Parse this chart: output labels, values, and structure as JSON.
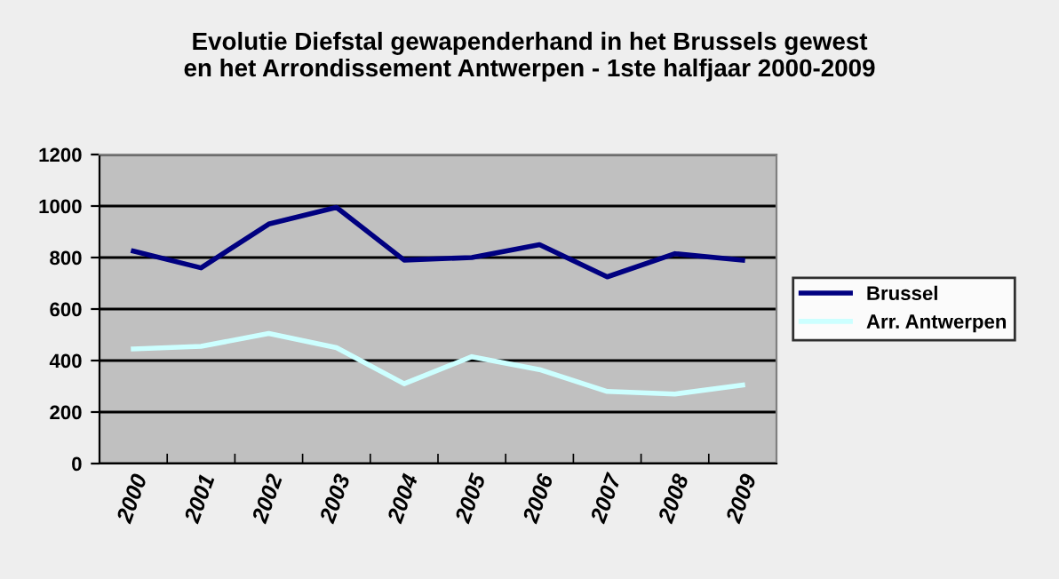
{
  "chart_data": {
    "type": "line",
    "title": "Evolutie Diefstal gewapenderhand in het Brussels gewest\nen het Arrondissement Antwerpen - 1ste halfjaar 2000-2009",
    "categories": [
      "2000",
      "2001",
      "2002",
      "2003",
      "2004",
      "2005",
      "2006",
      "2007",
      "2008",
      "2009"
    ],
    "series": [
      {
        "name": "Brussel",
        "color": "#000080",
        "values": [
          825,
          760,
          930,
          995,
          790,
          800,
          850,
          725,
          815,
          790
        ]
      },
      {
        "name": "Arr. Antwerpen",
        "color": "#ccffff",
        "values": [
          445,
          455,
          505,
          450,
          310,
          415,
          365,
          280,
          270,
          305
        ]
      }
    ],
    "ylim": [
      0,
      1200
    ],
    "yticks": [
      0,
      200,
      400,
      600,
      800,
      1000,
      1200
    ],
    "grid": "y",
    "legend": "right",
    "marker": "none",
    "line_style": "solid"
  }
}
